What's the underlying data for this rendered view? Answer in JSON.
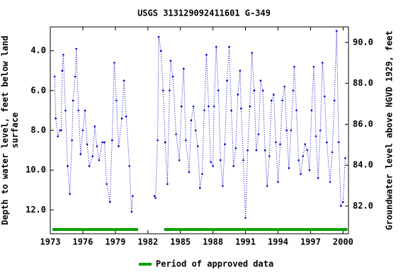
{
  "chart_data": {
    "type": "line",
    "title": "USGS 313129092411601 G-349",
    "ylabel": "Depth to water level, feet below land\nsurface",
    "y2label": "Groundwater level above NGVD 1929, feet",
    "xlim": [
      1973,
      2000.5
    ],
    "xticks": [
      1973,
      1976,
      1979,
      1982,
      1985,
      1988,
      1991,
      1994,
      1997,
      2000
    ],
    "ylim": [
      13.2,
      2.8
    ],
    "y_inverted": true,
    "yticks": [
      {
        "value": 4,
        "label": "4.0"
      },
      {
        "value": 6,
        "label": "6.0"
      },
      {
        "value": 8,
        "label": "8.0"
      },
      {
        "value": 10,
        "label": "10.0"
      },
      {
        "value": 12,
        "label": "12.0"
      }
    ],
    "y2lim": [
      80.65,
      90.76
    ],
    "y2ticks": [
      {
        "value": 82,
        "label": "82.0"
      },
      {
        "value": 84,
        "label": "84.0"
      },
      {
        "value": 86,
        "label": "86.0"
      },
      {
        "value": 88,
        "label": "88.0"
      },
      {
        "value": 90,
        "label": "90.0"
      }
    ],
    "series": [
      {
        "name": "Depth to water level",
        "color": "#0000cc",
        "x": [
          1973.4,
          1973.5,
          1973.7,
          1973.9,
          1974.0,
          1974.1,
          1974.2,
          1974.4,
          1974.6,
          1974.8,
          1975.0,
          1975.1,
          1975.3,
          1975.4,
          1975.6,
          1975.8,
          1976.0,
          1976.2,
          1976.4,
          1976.6,
          1976.9,
          1977.1,
          1977.3,
          1977.5,
          1977.8,
          1978.0,
          1978.2,
          1978.5,
          1978.7,
          1978.9,
          1979.1,
          1979.3,
          1979.6,
          1979.8,
          1980.0,
          1980.3,
          1980.5,
          1980.6,
          null,
          1982.6,
          1982.7,
          1982.9,
          1983.0,
          1983.2,
          1983.4,
          1983.6,
          1983.8,
          1984.0,
          1984.1,
          1984.3,
          1984.6,
          1984.9,
          1985.1,
          1985.3,
          1985.5,
          1985.8,
          1986.0,
          1986.2,
          1986.4,
          1986.6,
          1986.8,
          1987.0,
          1987.2,
          1987.4,
          1987.6,
          1987.8,
          1988.0,
          1988.1,
          1988.3,
          1988.5,
          1988.7,
          1988.9,
          1989.1,
          1989.3,
          1989.5,
          1989.7,
          1989.9,
          1990.1,
          1990.3,
          1990.5,
          1990.6,
          1990.8,
          1991.0,
          1991.2,
          1991.4,
          1991.6,
          1991.8,
          1992.0,
          1992.2,
          1992.4,
          1992.6,
          1992.8,
          1993.0,
          1993.2,
          1993.4,
          1993.6,
          1993.8,
          1994.0,
          1994.2,
          1994.4,
          1994.6,
          1994.8,
          1995.0,
          1995.2,
          1995.4,
          1995.5,
          1995.7,
          1995.9,
          1996.1,
          1996.3,
          1996.5,
          1996.7,
          1996.9,
          1997.1,
          1997.3,
          1997.5,
          1997.7,
          1997.9,
          1998.1,
          1998.3,
          1998.5,
          1998.8,
          1999.0,
          1999.2,
          1999.4,
          1999.6,
          1999.8,
          2000.0,
          2000.2
        ],
        "values": [
          5.3,
          7.4,
          8.3,
          8.0,
          8.0,
          5.0,
          4.2,
          7.0,
          9.8,
          11.2,
          8.5,
          6.5,
          5.3,
          3.9,
          7.0,
          9.2,
          8.0,
          7.0,
          8.7,
          9.8,
          9.3,
          7.8,
          8.8,
          9.5,
          8.6,
          8.6,
          10.7,
          11.6,
          8.5,
          4.6,
          6.5,
          8.8,
          7.4,
          5.5,
          7.3,
          9.8,
          12.1,
          11.3,
          null,
          11.3,
          11.4,
          8.5,
          3.3,
          4.0,
          6.0,
          8.6,
          10.7,
          6.0,
          4.5,
          5.3,
          8.2,
          9.5,
          6.8,
          4.9,
          8.5,
          10.1,
          7.5,
          6.8,
          8.0,
          8.8,
          10.9,
          10.2,
          7.0,
          4.2,
          6.8,
          9.6,
          9.8,
          6.8,
          3.8,
          6.0,
          9.5,
          10.8,
          8.7,
          5.5,
          3.8,
          7.0,
          9.8,
          8.9,
          6.2,
          5.0,
          6.9,
          9.5,
          12.4,
          9.0,
          6.8,
          4.1,
          6.0,
          9.0,
          8.2,
          5.5,
          6.0,
          9.0,
          10.8,
          9.3,
          6.5,
          6.2,
          8.6,
          10.6,
          8.7,
          6.5,
          5.8,
          8.0,
          9.9,
          8.0,
          6.0,
          4.8,
          7.0,
          9.5,
          10.2,
          9.3,
          8.7,
          9.0,
          10.0,
          7.0,
          4.8,
          8.3,
          10.4,
          8.0,
          4.6,
          6.3,
          8.6,
          10.6,
          9.1,
          6.5,
          3.0,
          8.6,
          11.8,
          11.6,
          9.4
        ]
      }
    ],
    "approved_periods": [
      {
        "start": 1973.2,
        "end": 1981.1
      },
      {
        "start": 1983.5,
        "end": 2000.4
      }
    ],
    "approved_color": "#00a000",
    "legend": "Period of approved data"
  }
}
